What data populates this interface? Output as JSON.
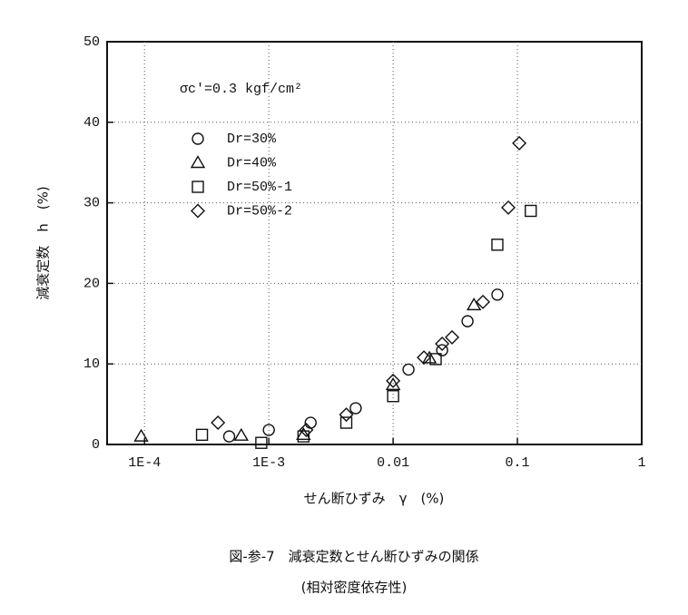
{
  "chart_data": {
    "type": "scatter",
    "annotation": "σc'=0.3 kgf/cm²",
    "x_label": "せん断ひずみ　γ　(%)",
    "y_label": "減衰定数　h　(%)",
    "caption": [
      "図-参-7　減衰定数とせん断ひずみの関係",
      "(相対密度依存性)"
    ],
    "x_log": true,
    "xlim": [
      5e-05,
      1
    ],
    "ylim": [
      0,
      50
    ],
    "xticks": [
      {
        "value": 0.0001,
        "label": "1E-4"
      },
      {
        "value": 0.001,
        "label": "1E-3"
      },
      0.01,
      0.1,
      1
    ],
    "yticks": [
      0,
      10,
      20,
      30,
      40,
      50
    ],
    "grid": true,
    "legend": "upper left",
    "series": [
      {
        "name": "Dr=30%",
        "marker": "circle",
        "color": "#111111",
        "x": [
          0.00048,
          0.001,
          0.00217,
          0.005,
          0.0133,
          0.0248,
          0.0397,
          0.069
        ],
        "values": [
          1.0,
          1.8,
          2.7,
          4.5,
          9.3,
          11.7,
          15.3,
          18.6
        ]
      },
      {
        "name": "Dr=40%",
        "marker": "triangle",
        "color": "#111111",
        "x": [
          9.4e-05,
          0.0006,
          0.0019,
          0.01,
          0.0196,
          0.0447
        ],
        "values": [
          1.0,
          1.1,
          1.2,
          7.4,
          10.7,
          17.3
        ]
      },
      {
        "name": "Dr=50%-1",
        "marker": "square",
        "color": "#111111",
        "x": [
          0.00029,
          0.00087,
          0.0019,
          0.0042,
          0.01,
          0.022,
          0.069,
          0.128
        ],
        "values": [
          1.2,
          0.2,
          1.0,
          2.7,
          6.0,
          10.6,
          24.8,
          29.0
        ]
      },
      {
        "name": "Dr=50%-2",
        "marker": "diamond",
        "color": "#111111",
        "x": [
          0.00039,
          0.002,
          0.0042,
          0.01,
          0.0177,
          0.0248,
          0.0298,
          0.0528,
          0.0845,
          0.1035
        ],
        "values": [
          2.7,
          1.8,
          3.7,
          7.9,
          10.8,
          12.5,
          13.3,
          17.7,
          29.4,
          37.4
        ]
      }
    ]
  }
}
